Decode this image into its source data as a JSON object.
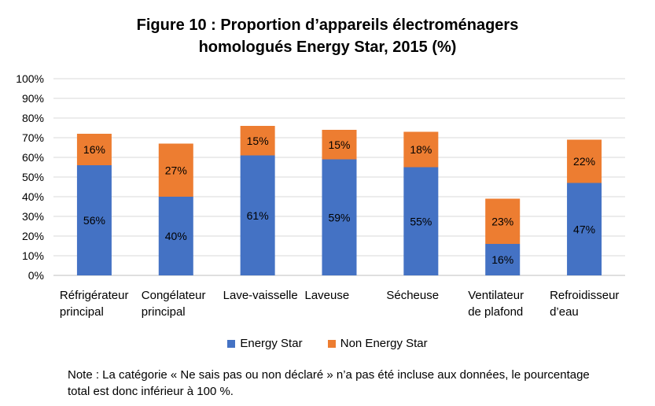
{
  "chart_data": {
    "type": "bar",
    "stacked": true,
    "title_line1": "Figure 10 : Proportion d’appareils électroménagers",
    "title_line2": "homologués Energy Star, 2015 (%)",
    "categories": [
      [
        "Réfrigérateur",
        "principal"
      ],
      [
        "Congélateur",
        "principal"
      ],
      [
        "Lave-vaisselle"
      ],
      [
        "Laveuse"
      ],
      [
        "Sécheuse"
      ],
      [
        "Ventilateur",
        "de plafond"
      ],
      [
        "Refroidisseur",
        "d’eau"
      ]
    ],
    "series": [
      {
        "name": "Energy Star",
        "color": "#4472c4",
        "values": [
          56,
          40,
          61,
          59,
          55,
          16,
          47
        ]
      },
      {
        "name": "Non Energy Star",
        "color": "#ed7d31",
        "values": [
          16,
          27,
          15,
          15,
          18,
          23,
          22
        ]
      }
    ],
    "ylim": [
      0,
      100
    ],
    "yticks": [
      "0%",
      "10%",
      "20%",
      "30%",
      "40%",
      "50%",
      "60%",
      "70%",
      "80%",
      "90%",
      "100%"
    ],
    "legend_position": "bottom"
  },
  "note": "Note : La catégorie « Ne sais pas ou non déclaré » n’a pas été incluse aux données, le pourcentage total est donc inférieur à 100 %."
}
